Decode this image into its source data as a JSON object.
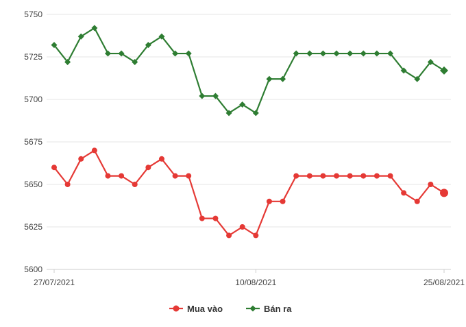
{
  "chart_data": {
    "type": "line",
    "title": "",
    "xlabel": "",
    "ylabel": "",
    "ylim": [
      5600,
      5750
    ],
    "yticks": [
      5600,
      5625,
      5650,
      5675,
      5700,
      5725,
      5750
    ],
    "x_tick_labels": [
      "27/07/2021",
      "10/08/2021",
      "25/08/2021"
    ],
    "grid": "horizontal",
    "legend_position": "bottom-center",
    "series": [
      {
        "name": "Mua vào",
        "color": "#e53935",
        "marker": "circle",
        "values": [
          5660,
          5650,
          5665,
          5670,
          5655,
          5655,
          5650,
          5660,
          5665,
          5655,
          5655,
          5630,
          5630,
          5620,
          5625,
          5620,
          5640,
          5640,
          5655,
          5655,
          5655,
          5655,
          5655,
          5655,
          5655,
          5655,
          5645,
          5640,
          5650,
          5645
        ]
      },
      {
        "name": "Bán ra",
        "color": "#2e7d32",
        "marker": "diamond",
        "values": [
          5732,
          5722,
          5737,
          5742,
          5727,
          5727,
          5722,
          5732,
          5737,
          5727,
          5727,
          5702,
          5702,
          5692,
          5697,
          5692,
          5712,
          5712,
          5727,
          5727,
          5727,
          5727,
          5727,
          5727,
          5727,
          5727,
          5717,
          5712,
          5722,
          5717
        ]
      }
    ]
  }
}
